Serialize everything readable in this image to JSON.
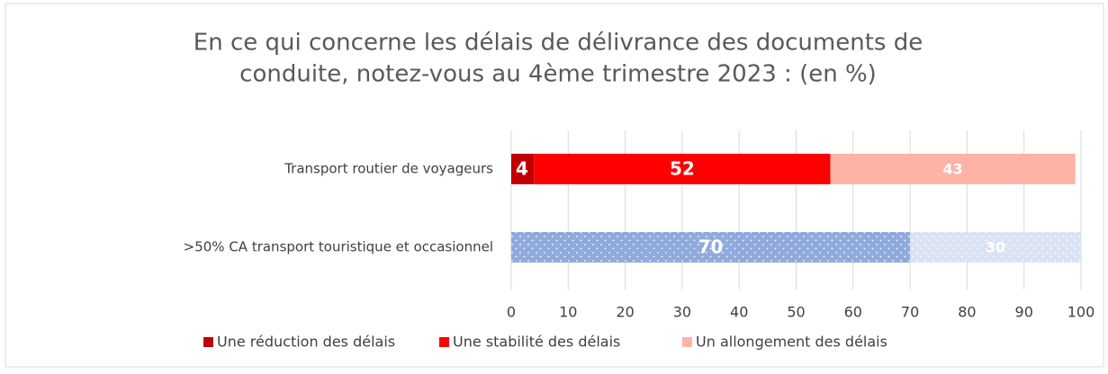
{
  "chart_data": {
    "type": "stacked-bar-horizontal",
    "title": [
      "En ce qui concerne les délais de délivrance des documents de",
      "conduite, notez-vous au 4ème trimestre 2023 : (en %)"
    ],
    "categories": [
      "Transport routier de voyageurs",
      ">50% CA transport touristique et occasionnel"
    ],
    "dotted": [
      false,
      true
    ],
    "series": [
      {
        "name": "Une réduction des délais",
        "color": "#c00000",
        "colors": [
          "#c00000",
          "#c00000"
        ],
        "values": [
          4,
          null
        ]
      },
      {
        "name": "Une stabilité des délais",
        "color": "#ff0000",
        "colors": [
          "#ff0000",
          "#8faadc"
        ],
        "values": [
          52,
          70
        ]
      },
      {
        "name": "Un allongement des délais",
        "color": "#ffb3a7",
        "colors": [
          "#ffb3a7",
          "#dae3f3"
        ],
        "values": [
          43,
          30
        ]
      }
    ],
    "xlim": [
      0,
      100
    ],
    "xticks": [
      0,
      10,
      20,
      30,
      40,
      50,
      60,
      70,
      80,
      90,
      100
    ],
    "grid": true,
    "legend": "bottom"
  }
}
